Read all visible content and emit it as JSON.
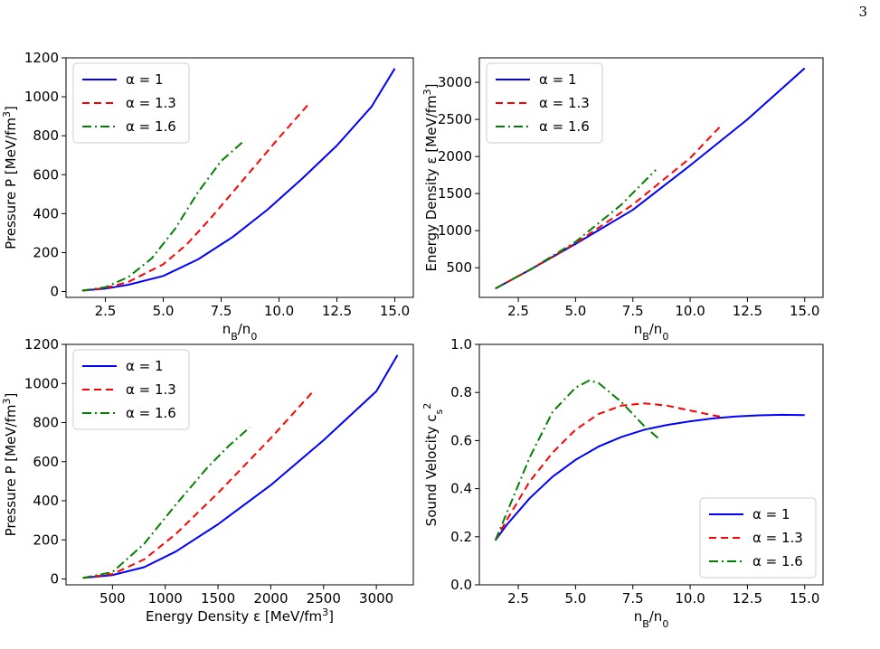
{
  "page_number": "3",
  "colors": {
    "alpha1": "#0000ff",
    "alpha13": "#ff0000",
    "alpha16": "#008000"
  },
  "chart_data": [
    {
      "type": "line",
      "xlabel": "n_B/n_0",
      "ylabel": "Pressure P [MeV/fm^3]",
      "xlim": [
        0.8,
        15.8
      ],
      "ylim": [
        -30,
        1200
      ],
      "xticks": [
        2.5,
        5.0,
        7.5,
        10.0,
        12.5,
        15.0
      ],
      "xticklabels": [
        "2.5",
        "5.0",
        "7.5",
        "10.0",
        "12.5",
        "15.0"
      ],
      "yticks": [
        0,
        200,
        400,
        600,
        800,
        1000,
        1200
      ],
      "yticklabels": [
        "0",
        "200",
        "400",
        "600",
        "800",
        "1000",
        "1200"
      ],
      "legend_position": "upper-left",
      "series": [
        {
          "name": "α = 1",
          "style": "solid",
          "x": [
            1.5,
            2.5,
            3.5,
            5,
            6.5,
            8,
            9.5,
            11,
            12.5,
            14,
            15
          ],
          "y": [
            5,
            15,
            35,
            80,
            165,
            280,
            420,
            580,
            750,
            950,
            1145
          ]
        },
        {
          "name": "α = 1.3",
          "style": "dashed",
          "x": [
            1.5,
            2.5,
            3.5,
            5,
            6,
            7,
            8,
            9,
            10,
            11.3
          ],
          "y": [
            5,
            18,
            50,
            140,
            240,
            370,
            510,
            650,
            790,
            965
          ]
        },
        {
          "name": "α = 1.6",
          "style": "dashdot",
          "x": [
            1.5,
            2.5,
            3.5,
            4.5,
            5.5,
            6.5,
            7.5,
            8.5
          ],
          "y": [
            5,
            22,
            75,
            170,
            320,
            510,
            670,
            775
          ]
        }
      ]
    },
    {
      "type": "line",
      "xlabel": "n_B/n_0",
      "ylabel": "Energy Density ε [MeV/fm^3]",
      "xlim": [
        0.8,
        15.8
      ],
      "ylim": [
        100,
        3330
      ],
      "xticks": [
        2.5,
        5.0,
        7.5,
        10.0,
        12.5,
        15.0
      ],
      "xticklabels": [
        "2.5",
        "5.0",
        "7.5",
        "10.0",
        "12.5",
        "15.0"
      ],
      "yticks": [
        500,
        1000,
        1500,
        2000,
        2500,
        3000
      ],
      "yticklabels": [
        "500",
        "1000",
        "1500",
        "2000",
        "2500",
        "3000"
      ],
      "legend_position": "upper-left",
      "series": [
        {
          "name": "α = 1",
          "style": "solid",
          "x": [
            1.5,
            3,
            5,
            7.5,
            10,
            12.5,
            15
          ],
          "y": [
            220,
            470,
            820,
            1280,
            1880,
            2500,
            3190
          ]
        },
        {
          "name": "α = 1.3",
          "style": "dashed",
          "x": [
            1.5,
            3,
            5,
            7.5,
            10,
            11.3
          ],
          "y": [
            220,
            470,
            830,
            1350,
            1980,
            2400
          ]
        },
        {
          "name": "α = 1.6",
          "style": "dashdot",
          "x": [
            1.5,
            3,
            5,
            7,
            8.5
          ],
          "y": [
            220,
            470,
            850,
            1350,
            1820
          ]
        }
      ]
    },
    {
      "type": "line",
      "xlabel": "Energy Density ε [MeV/fm^3]",
      "ylabel": "Pressure P [MeV/fm^3]",
      "xlim": [
        60,
        3350
      ],
      "ylim": [
        -30,
        1200
      ],
      "xticks": [
        500,
        1000,
        1500,
        2000,
        2500,
        3000
      ],
      "xticklabels": [
        "500",
        "1000",
        "1500",
        "2000",
        "2500",
        "3000"
      ],
      "yticks": [
        0,
        200,
        400,
        600,
        800,
        1000,
        1200
      ],
      "yticklabels": [
        "0",
        "200",
        "400",
        "600",
        "800",
        "1000",
        "1200"
      ],
      "legend_position": "upper-left",
      "series": [
        {
          "name": "α = 1",
          "style": "solid",
          "x": [
            220,
            500,
            800,
            1100,
            1500,
            2000,
            2500,
            3000,
            3200
          ],
          "y": [
            5,
            20,
            60,
            140,
            280,
            480,
            710,
            960,
            1145
          ]
        },
        {
          "name": "α = 1.3",
          "style": "dashed",
          "x": [
            220,
            500,
            800,
            1100,
            1500,
            2000,
            2410
          ],
          "y": [
            5,
            25,
            100,
            230,
            440,
            720,
            965
          ]
        },
        {
          "name": "α = 1.6",
          "style": "dashdot",
          "x": [
            220,
            500,
            800,
            1100,
            1400,
            1600,
            1800
          ],
          "y": [
            5,
            35,
            180,
            380,
            570,
            680,
            775
          ]
        }
      ]
    },
    {
      "type": "line",
      "xlabel": "n_B/n_0",
      "ylabel": "Sound Velocity c_s^2",
      "xlim": [
        0.8,
        15.8
      ],
      "ylim": [
        0.0,
        1.0
      ],
      "xticks": [
        2.5,
        5.0,
        7.5,
        10.0,
        12.5,
        15.0
      ],
      "xticklabels": [
        "2.5",
        "5.0",
        "7.5",
        "10.0",
        "12.5",
        "15.0"
      ],
      "yticks": [
        0.0,
        0.2,
        0.4,
        0.6,
        0.8,
        1.0
      ],
      "yticklabels": [
        "0.0",
        "0.2",
        "0.4",
        "0.6",
        "0.8",
        "1.0"
      ],
      "legend_position": "lower-right",
      "series": [
        {
          "name": "α = 1",
          "style": "solid",
          "x": [
            1.5,
            2,
            3,
            4,
            5,
            6,
            7,
            8,
            9,
            10,
            11,
            12,
            13,
            14,
            15
          ],
          "y": [
            0.185,
            0.25,
            0.36,
            0.45,
            0.52,
            0.575,
            0.615,
            0.645,
            0.665,
            0.68,
            0.692,
            0.7,
            0.705,
            0.707,
            0.706
          ]
        },
        {
          "name": "α = 1.3",
          "style": "dashed",
          "x": [
            1.5,
            2,
            3,
            4,
            5,
            6,
            7,
            8,
            9,
            10,
            11,
            11.3
          ],
          "y": [
            0.185,
            0.27,
            0.43,
            0.55,
            0.645,
            0.71,
            0.745,
            0.755,
            0.745,
            0.725,
            0.705,
            0.7
          ]
        },
        {
          "name": "α = 1.6",
          "style": "dashdot",
          "x": [
            1.5,
            2,
            3,
            4,
            5,
            5.6,
            6,
            7,
            8,
            8.6
          ],
          "y": [
            0.185,
            0.3,
            0.53,
            0.72,
            0.82,
            0.85,
            0.84,
            0.76,
            0.66,
            0.61
          ]
        }
      ]
    }
  ]
}
